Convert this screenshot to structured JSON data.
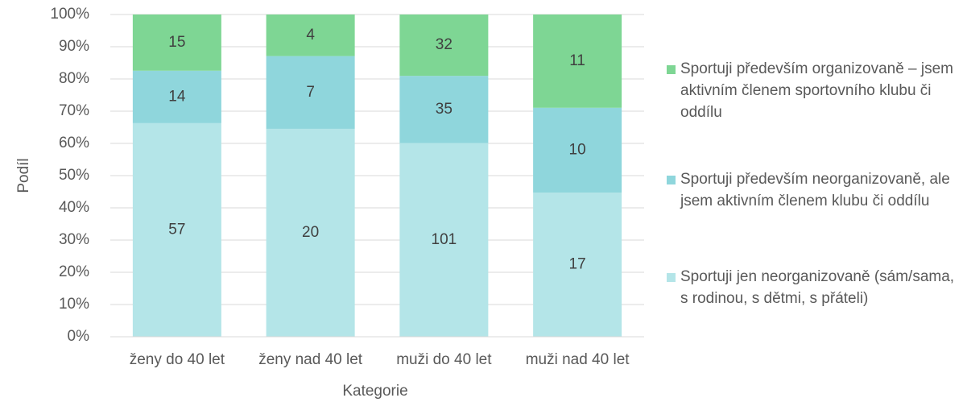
{
  "chart_data": {
    "type": "bar",
    "stacked": true,
    "normalize": true,
    "x_label": "Kategorie",
    "y_label": "Podíl",
    "categories": [
      "ženy do 40 let",
      "ženy nad 40 let",
      "muži do 40 let",
      "muži nad 40 let"
    ],
    "series": [
      {
        "name": "Sportuji jen neorganizovaně (sám/sama, s rodinou, s dětmi, s přáteli)",
        "color": "#b4e5e8",
        "values": [
          57,
          20,
          101,
          17
        ]
      },
      {
        "name": "Sportuji především neorganizovaně, ale jsem aktivním členem klubu či oddílu",
        "color": "#8fd6dc",
        "values": [
          14,
          7,
          35,
          10
        ]
      },
      {
        "name": "Sportuji především organizovaně – jsem aktivním členem sportovního klubu či oddílu",
        "color": "#7ed694",
        "values": [
          15,
          4,
          32,
          11
        ]
      }
    ],
    "ylim": [
      0,
      100
    ],
    "yticks": [
      {
        "value": 0,
        "label": "0%"
      },
      {
        "value": 10,
        "label": "10%"
      },
      {
        "value": 20,
        "label": "20%"
      },
      {
        "value": 30,
        "label": "30%"
      },
      {
        "value": 40,
        "label": "40%"
      },
      {
        "value": 50,
        "label": "50%"
      },
      {
        "value": 60,
        "label": "60%"
      },
      {
        "value": 70,
        "label": "70%"
      },
      {
        "value": 80,
        "label": "80%"
      },
      {
        "value": 90,
        "label": "90%"
      },
      {
        "value": 100,
        "label": "100%"
      }
    ],
    "grid": true,
    "legend": "right"
  }
}
